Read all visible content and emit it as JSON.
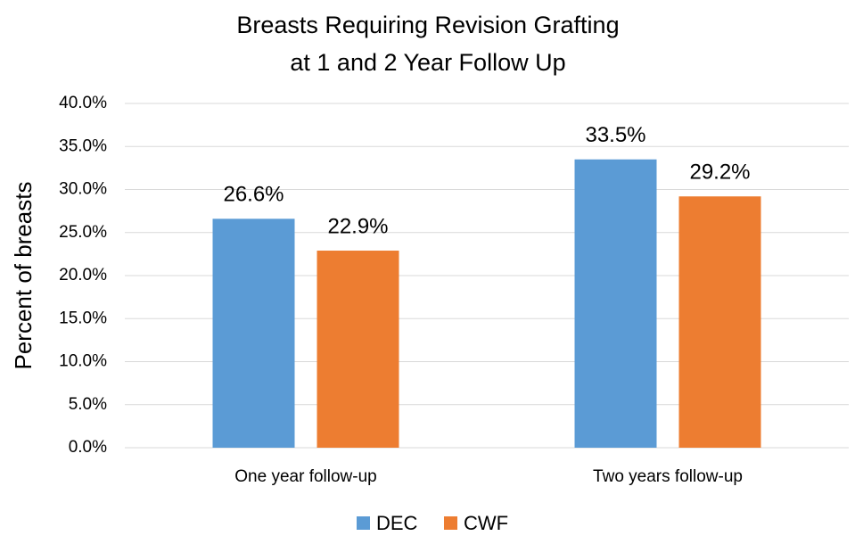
{
  "chart_data": {
    "type": "bar",
    "title": [
      "Breasts Requiring Revision Grafting",
      "at 1 and 2 Year Follow Up"
    ],
    "y_label": "Percent of breasts",
    "categories": [
      "One year follow-up",
      "Two years follow-up"
    ],
    "series": [
      {
        "name": "DEC",
        "color": "#5b9bd5",
        "values": [
          26.6,
          33.5
        ],
        "value_labels": [
          "26.6%",
          "33.5%"
        ]
      },
      {
        "name": "CWF",
        "color": "#ed7d31",
        "values": [
          22.9,
          29.2
        ],
        "value_labels": [
          "22.9%",
          "29.2%"
        ]
      }
    ],
    "ylim": [
      0,
      40
    ],
    "yticks": [
      {
        "value": 0,
        "label": "0.0%"
      },
      {
        "value": 5,
        "label": "5.0%"
      },
      {
        "value": 10,
        "label": "10.0%"
      },
      {
        "value": 15,
        "label": "15.0%"
      },
      {
        "value": 20,
        "label": "20.0%"
      },
      {
        "value": 25,
        "label": "25.0%"
      },
      {
        "value": 30,
        "label": "30.0%"
      },
      {
        "value": 35,
        "label": "35.0%"
      },
      {
        "value": 40,
        "label": "40.0%"
      }
    ],
    "grid": true,
    "legend": "bottom"
  }
}
